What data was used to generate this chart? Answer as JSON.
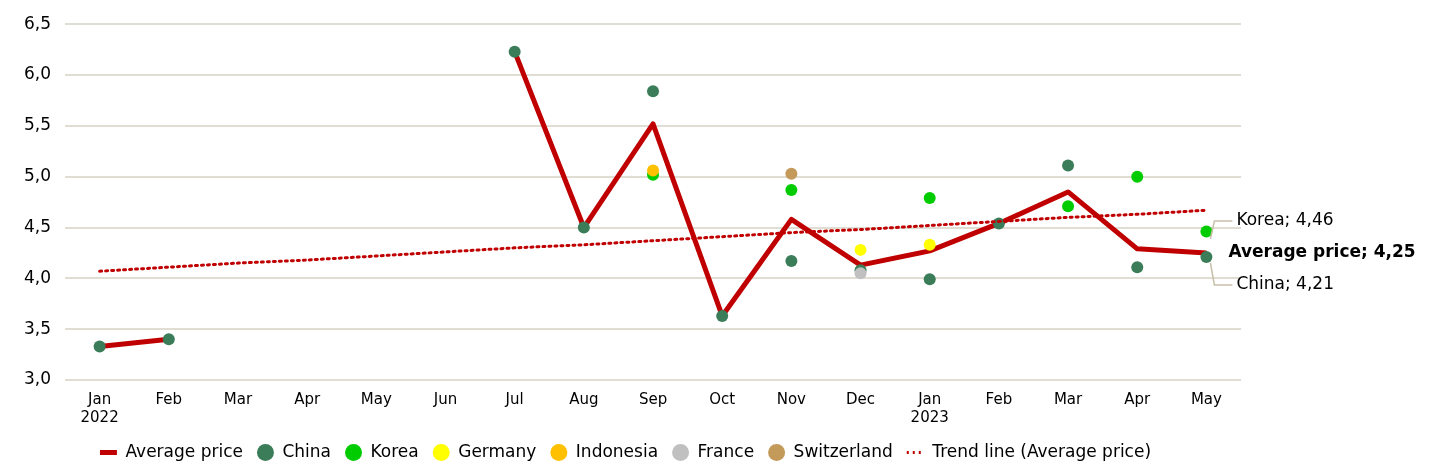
{
  "chart_data": {
    "type": "line",
    "categories": [
      "Jan\n2022",
      "Feb",
      "Mar",
      "Apr",
      "May",
      "Jun",
      "Jul",
      "Aug",
      "Sep",
      "Oct",
      "Nov",
      "Dec",
      "Jan\n2023",
      "Feb",
      "Mar",
      "Apr",
      "May"
    ],
    "series": [
      {
        "name": "Average price",
        "type": "line",
        "color": "#c00000",
        "marker": "none",
        "values": [
          3.33,
          3.4,
          null,
          null,
          null,
          null,
          6.23,
          4.5,
          5.52,
          3.63,
          4.58,
          4.13,
          4.27,
          4.54,
          4.85,
          4.29,
          4.25
        ]
      },
      {
        "name": "China",
        "type": "scatter",
        "color": "#3a7d58",
        "values": [
          3.33,
          3.4,
          null,
          null,
          null,
          null,
          6.23,
          4.5,
          5.84,
          3.63,
          4.17,
          4.08,
          3.99,
          4.54,
          5.11,
          4.11,
          4.21
        ]
      },
      {
        "name": "Korea",
        "type": "scatter",
        "color": "#00cc00",
        "values": [
          null,
          null,
          null,
          null,
          null,
          null,
          null,
          null,
          5.02,
          null,
          4.87,
          null,
          4.79,
          null,
          4.71,
          5.0,
          4.46
        ]
      },
      {
        "name": "Germany",
        "type": "scatter",
        "color": "#ffff00",
        "values": [
          null,
          null,
          null,
          null,
          null,
          null,
          null,
          null,
          null,
          null,
          null,
          4.28,
          4.33,
          null,
          null,
          null,
          null
        ]
      },
      {
        "name": "Indonesia",
        "type": "scatter",
        "color": "#ffc000",
        "values": [
          null,
          null,
          null,
          null,
          null,
          null,
          null,
          null,
          5.06,
          null,
          null,
          null,
          null,
          null,
          null,
          null,
          null
        ]
      },
      {
        "name": "France",
        "type": "scatter",
        "color": "#c0c0c0",
        "values": [
          null,
          null,
          null,
          null,
          null,
          null,
          null,
          null,
          null,
          null,
          null,
          4.05,
          null,
          null,
          null,
          null,
          null
        ]
      },
      {
        "name": "Switzerland",
        "type": "scatter",
        "color": "#c49a5a",
        "values": [
          null,
          null,
          null,
          null,
          null,
          null,
          null,
          null,
          null,
          null,
          5.03,
          null,
          null,
          null,
          null,
          null,
          null
        ]
      },
      {
        "name": "Trend line (Average price)",
        "type": "line",
        "color": "#c00000",
        "marker": "none",
        "line_style": "dotted",
        "values": [
          4.07,
          4.11,
          4.15,
          4.18,
          4.22,
          4.26,
          4.3,
          4.33,
          4.37,
          4.41,
          4.45,
          4.48,
          4.52,
          4.56,
          4.6,
          4.63,
          4.67
        ]
      }
    ],
    "ylim": [
      3,
      6.5
    ],
    "yticks": [
      {
        "value": 3,
        "label": "3,0"
      },
      {
        "value": 3.5,
        "label": "3,5"
      },
      {
        "value": 4,
        "label": "4,0"
      },
      {
        "value": 4.5,
        "label": "4,5"
      },
      {
        "value": 5,
        "label": "5,0"
      },
      {
        "value": 5.5,
        "label": "5,5"
      },
      {
        "value": 6,
        "label": "6,0"
      },
      {
        "value": 6.5,
        "label": "6,5"
      }
    ],
    "grid": "y",
    "legend": "bottom",
    "marker": "circle",
    "annotations": [
      "Korea; 4,46",
      "Average price; 4,25",
      "China; 4,21"
    ]
  }
}
